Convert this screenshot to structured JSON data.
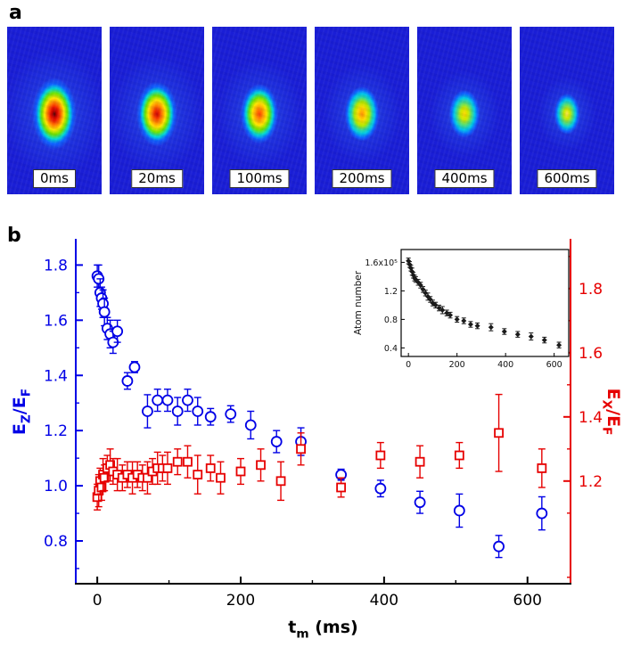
{
  "figure": {
    "panel_a_label": "a",
    "panel_b_label": "b"
  },
  "panel_a": {
    "background_color": "#1a1ed6",
    "images": [
      {
        "label": "0ms",
        "blob_rx": 26,
        "blob_ry": 42,
        "stops": [
          [
            "#4a0000",
            0
          ],
          [
            "#b80000",
            8
          ],
          [
            "#f01800",
            18
          ],
          [
            "#ff7a00",
            30
          ],
          [
            "#ffe400",
            42
          ],
          [
            "#6fe400",
            55
          ],
          [
            "#00d8d8",
            68
          ],
          [
            "#0f60ff",
            80
          ],
          [
            "rgba(18,22,214,0)",
            96
          ]
        ]
      },
      {
        "label": "20ms",
        "blob_rx": 24,
        "blob_ry": 38,
        "stops": [
          [
            "#c80000",
            0
          ],
          [
            "#f03000",
            12
          ],
          [
            "#ff8800",
            26
          ],
          [
            "#ffe400",
            40
          ],
          [
            "#70e400",
            54
          ],
          [
            "#00d8d8",
            68
          ],
          [
            "#0f60ff",
            80
          ],
          [
            "rgba(18,22,214,0)",
            96
          ]
        ]
      },
      {
        "label": "100ms",
        "blob_rx": 22,
        "blob_ry": 35,
        "stops": [
          [
            "#ff3c00",
            0
          ],
          [
            "#ff9000",
            18
          ],
          [
            "#ffe400",
            36
          ],
          [
            "#70e400",
            52
          ],
          [
            "#00d8d8",
            68
          ],
          [
            "#0f60ff",
            82
          ],
          [
            "rgba(18,22,214,0)",
            96
          ]
        ]
      },
      {
        "label": "200ms",
        "blob_rx": 20,
        "blob_ry": 32,
        "stops": [
          [
            "#ff9000",
            0
          ],
          [
            "#ffd800",
            22
          ],
          [
            "#b0e800",
            42
          ],
          [
            "#2cd8a0",
            58
          ],
          [
            "#00c8e8",
            70
          ],
          [
            "#0f60ff",
            84
          ],
          [
            "rgba(18,22,214,0)",
            96
          ]
        ]
      },
      {
        "label": "400ms",
        "blob_rx": 18,
        "blob_ry": 28,
        "stops": [
          [
            "#ffd800",
            0
          ],
          [
            "#c8e800",
            25
          ],
          [
            "#50dc78",
            45
          ],
          [
            "#00c8e8",
            64
          ],
          [
            "#0f60ff",
            82
          ],
          [
            "rgba(18,22,214,0)",
            96
          ]
        ]
      },
      {
        "label": "600ms",
        "blob_rx": 15,
        "blob_ry": 24,
        "stops": [
          [
            "#ffe44a",
            0
          ],
          [
            "#c8e800",
            22
          ],
          [
            "#50dc78",
            45
          ],
          [
            "#00c8e8",
            64
          ],
          [
            "#0f60ff",
            82
          ],
          [
            "rgba(18,22,214,0)",
            96
          ]
        ]
      }
    ]
  },
  "chart_data": {
    "type": "scatter",
    "title": "",
    "xlabel_parts": [
      [
        "t",
        0
      ],
      [
        "m",
        1
      ],
      [
        " (ms)",
        0
      ]
    ],
    "x_ticks": [
      0,
      200,
      400,
      600
    ],
    "xlim": [
      -30,
      660
    ],
    "left_axis": {
      "label_parts": [
        [
          "E",
          0
        ],
        [
          "Z",
          1
        ],
        [
          "/E",
          0
        ],
        [
          "F",
          1
        ]
      ],
      "color": "#0000e6",
      "ticks": [
        0.8,
        1.0,
        1.2,
        1.4,
        1.6,
        1.8
      ],
      "lim": [
        0.645,
        1.895
      ]
    },
    "right_axis": {
      "label_parts": [
        [
          "E",
          0
        ],
        [
          "X",
          1
        ],
        [
          "/E",
          0
        ],
        [
          "F",
          1
        ]
      ],
      "color": "#e60000",
      "ticks": [
        1.2,
        1.4,
        1.6,
        1.8
      ],
      "lim": [
        0.88,
        1.955
      ]
    },
    "series": [
      {
        "name": "EZ/EF",
        "axis": "left",
        "marker": "circle",
        "color": "#0000e6",
        "points": [
          [
            0,
            1.76,
            0.04
          ],
          [
            2,
            1.75,
            0.05
          ],
          [
            4,
            1.7,
            0.05
          ],
          [
            6,
            1.68,
            0.04
          ],
          [
            8,
            1.66,
            0.05
          ],
          [
            10,
            1.63,
            0.05
          ],
          [
            14,
            1.57,
            0.04
          ],
          [
            18,
            1.55,
            0.05
          ],
          [
            22,
            1.52,
            0.04
          ],
          [
            28,
            1.56,
            0.04
          ],
          [
            42,
            1.38,
            0.03
          ],
          [
            52,
            1.43,
            0.02
          ],
          [
            70,
            1.27,
            0.06
          ],
          [
            84,
            1.31,
            0.04
          ],
          [
            98,
            1.31,
            0.04
          ],
          [
            112,
            1.27,
            0.05
          ],
          [
            126,
            1.31,
            0.04
          ],
          [
            140,
            1.27,
            0.05
          ],
          [
            158,
            1.25,
            0.03
          ],
          [
            186,
            1.26,
            0.03
          ],
          [
            214,
            1.22,
            0.05
          ],
          [
            250,
            1.16,
            0.04
          ],
          [
            284,
            1.16,
            0.05
          ],
          [
            340,
            1.04,
            0.02
          ],
          [
            395,
            0.99,
            0.03
          ],
          [
            450,
            0.94,
            0.04
          ],
          [
            505,
            0.91,
            0.06
          ],
          [
            560,
            0.78,
            0.04
          ],
          [
            620,
            0.9,
            0.06
          ]
        ]
      },
      {
        "name": "EX/EF",
        "axis": "right",
        "marker": "square",
        "color": "#e60000",
        "points": [
          [
            0,
            1.15,
            0.04
          ],
          [
            2,
            1.17,
            0.05
          ],
          [
            4,
            1.2,
            0.04
          ],
          [
            6,
            1.18,
            0.04
          ],
          [
            8,
            1.22,
            0.05
          ],
          [
            10,
            1.21,
            0.04
          ],
          [
            14,
            1.24,
            0.04
          ],
          [
            18,
            1.25,
            0.05
          ],
          [
            22,
            1.23,
            0.04
          ],
          [
            28,
            1.22,
            0.05
          ],
          [
            35,
            1.21,
            0.04
          ],
          [
            42,
            1.22,
            0.04
          ],
          [
            49,
            1.21,
            0.05
          ],
          [
            56,
            1.22,
            0.04
          ],
          [
            63,
            1.21,
            0.04
          ],
          [
            70,
            1.21,
            0.05
          ],
          [
            77,
            1.23,
            0.04
          ],
          [
            84,
            1.24,
            0.05
          ],
          [
            91,
            1.24,
            0.04
          ],
          [
            98,
            1.24,
            0.05
          ],
          [
            112,
            1.26,
            0.04
          ],
          [
            126,
            1.26,
            0.05
          ],
          [
            140,
            1.22,
            0.06
          ],
          [
            158,
            1.24,
            0.04
          ],
          [
            172,
            1.21,
            0.05
          ],
          [
            200,
            1.23,
            0.04
          ],
          [
            228,
            1.25,
            0.05
          ],
          [
            256,
            1.2,
            0.06
          ],
          [
            284,
            1.3,
            0.05
          ],
          [
            340,
            1.18,
            0.03
          ],
          [
            395,
            1.28,
            0.04
          ],
          [
            450,
            1.26,
            0.05
          ],
          [
            505,
            1.28,
            0.04
          ],
          [
            560,
            1.35,
            0.12
          ],
          [
            620,
            1.24,
            0.06
          ]
        ]
      }
    ],
    "inset": {
      "ylabel": "Atom number",
      "xlim": [
        -30,
        660
      ],
      "ylim": [
        0.28,
        1.78
      ],
      "x_ticks": [
        0,
        200,
        400,
        600
      ],
      "y_ticks": [
        0.4,
        0.8,
        1.2,
        1.6
      ],
      "y_top_tick_label": "1.6x10⁵",
      "marker": "diamond",
      "color": "#1a1a1a",
      "points": [
        [
          0,
          1.62,
          0.04
        ],
        [
          5,
          1.57,
          0.04
        ],
        [
          10,
          1.52,
          0.04
        ],
        [
          15,
          1.47,
          0.05
        ],
        [
          20,
          1.42,
          0.04
        ],
        [
          25,
          1.38,
          0.04
        ],
        [
          30,
          1.36,
          0.04
        ],
        [
          40,
          1.32,
          0.04
        ],
        [
          50,
          1.28,
          0.04
        ],
        [
          60,
          1.22,
          0.04
        ],
        [
          70,
          1.17,
          0.04
        ],
        [
          80,
          1.12,
          0.05
        ],
        [
          90,
          1.08,
          0.04
        ],
        [
          100,
          1.03,
          0.04
        ],
        [
          112,
          1.0,
          0.04
        ],
        [
          126,
          0.96,
          0.04
        ],
        [
          140,
          0.93,
          0.05
        ],
        [
          158,
          0.89,
          0.04
        ],
        [
          172,
          0.86,
          0.04
        ],
        [
          200,
          0.8,
          0.04
        ],
        [
          228,
          0.78,
          0.04
        ],
        [
          256,
          0.73,
          0.04
        ],
        [
          284,
          0.71,
          0.04
        ],
        [
          340,
          0.69,
          0.05
        ],
        [
          395,
          0.63,
          0.04
        ],
        [
          450,
          0.59,
          0.04
        ],
        [
          505,
          0.56,
          0.05
        ],
        [
          560,
          0.51,
          0.04
        ],
        [
          620,
          0.44,
          0.04
        ]
      ]
    }
  }
}
